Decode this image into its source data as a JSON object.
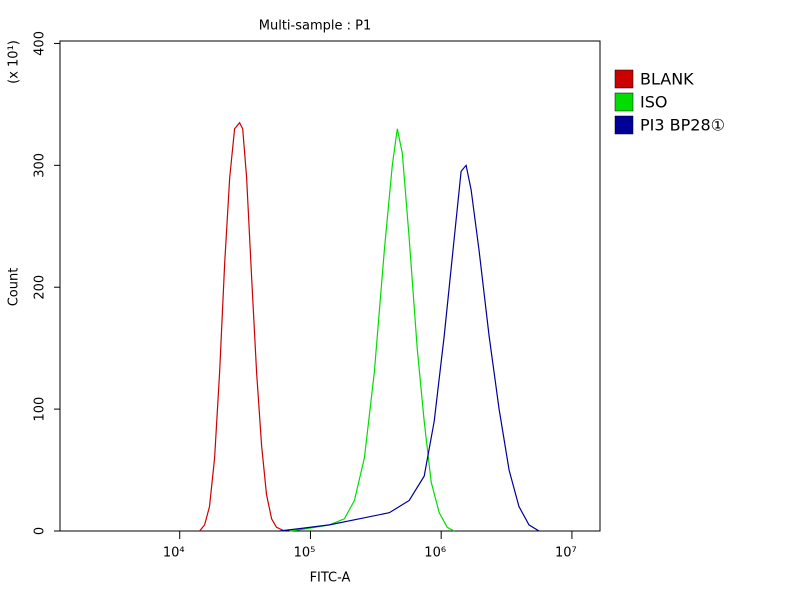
{
  "chart_data": {
    "type": "line",
    "title": "Multi-sample : P1",
    "x_label": "FITC-A",
    "y_label": "Count",
    "y_unit": "(x 10¹)",
    "xscale": "log",
    "xlim": [
      1214,
      16400000
    ],
    "ylim": [
      0,
      402
    ],
    "xticks": [
      {
        "value": 10000,
        "label": "10⁴"
      },
      {
        "value": 100000,
        "label": "10⁵"
      },
      {
        "value": 1000000,
        "label": "10⁶"
      },
      {
        "value": 10000000,
        "label": "10⁷"
      }
    ],
    "yticks": [
      0,
      100,
      200,
      300,
      400
    ],
    "legend": "right",
    "series": [
      {
        "name": "BLANK",
        "color": "#cc0000",
        "x": [
          14200,
          15500,
          16900,
          18500,
          20200,
          22100,
          24100,
          26300,
          28700,
          30300,
          32500,
          35400,
          38700,
          42300,
          46100,
          50400,
          55000,
          63300
        ],
        "values": [
          0,
          5,
          20,
          60,
          130,
          220,
          290,
          330,
          335,
          330,
          290,
          210,
          130,
          70,
          30,
          10,
          3,
          0
        ]
      },
      {
        "name": "ISO",
        "color": "#00dd00",
        "x": [
          69200,
          82400,
          139600,
          181800,
          216700,
          258400,
          307900,
          367100,
          422700,
          461400,
          503900,
          569800,
          655800,
          741800,
          838800,
          965400,
          1111000,
          1257000
        ],
        "values": [
          0,
          1,
          5,
          10,
          25,
          60,
          130,
          230,
          300,
          330,
          310,
          240,
          150,
          90,
          40,
          15,
          3,
          0
        ]
      },
      {
        "name": "PI3 BP28①",
        "color": "#000099",
        "x": [
          58000,
          82400,
          139600,
          236600,
          400900,
          569800,
          741800,
          884300,
          1054000,
          1257000,
          1421000,
          1551000,
          1694000,
          1950000,
          2325000,
          2772000,
          3305000,
          3939000,
          4697000,
          5600000
        ],
        "values": [
          0,
          2,
          5,
          10,
          15,
          25,
          45,
          90,
          160,
          240,
          295,
          300,
          280,
          230,
          160,
          100,
          50,
          20,
          5,
          0
        ]
      }
    ]
  }
}
